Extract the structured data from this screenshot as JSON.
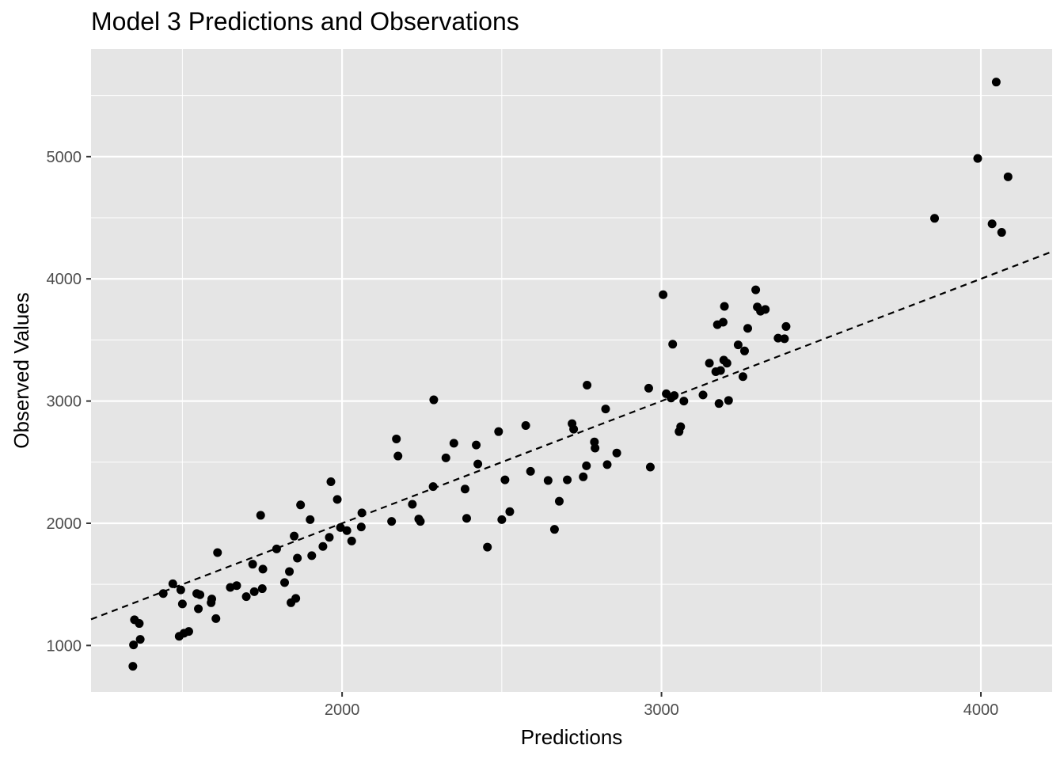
{
  "chart_data": {
    "type": "scatter",
    "title": "Model 3 Predictions and Observations",
    "xlabel": "Predictions",
    "ylabel": "Observed Values",
    "xlim": [
      1214,
      4223
    ],
    "ylim": [
      620,
      5880
    ],
    "x_ticks": [
      2000,
      3000,
      4000
    ],
    "y_ticks": [
      1000,
      2000,
      3000,
      4000,
      5000
    ],
    "grid": true,
    "legend": "none",
    "panel_background": "#e5e5e5",
    "grid_color": "#ffffff",
    "point_color": "#000000",
    "reference_line": {
      "style": "dashed",
      "slope": 1,
      "intercept": 0,
      "color": "#000000"
    },
    "points": [
      [
        1345,
        830
      ],
      [
        1347,
        1005
      ],
      [
        1350,
        1210
      ],
      [
        1365,
        1180
      ],
      [
        1368,
        1050
      ],
      [
        1440,
        1425
      ],
      [
        1470,
        1505
      ],
      [
        1490,
        1075
      ],
      [
        1495,
        1455
      ],
      [
        1500,
        1340
      ],
      [
        1505,
        1100
      ],
      [
        1520,
        1115
      ],
      [
        1545,
        1425
      ],
      [
        1550,
        1300
      ],
      [
        1555,
        1415
      ],
      [
        1590,
        1350
      ],
      [
        1592,
        1380
      ],
      [
        1605,
        1220
      ],
      [
        1610,
        1760
      ],
      [
        1650,
        1475
      ],
      [
        1670,
        1490
      ],
      [
        1700,
        1400
      ],
      [
        1720,
        1665
      ],
      [
        1725,
        1440
      ],
      [
        1745,
        2065
      ],
      [
        1750,
        1465
      ],
      [
        1752,
        1625
      ],
      [
        1795,
        1790
      ],
      [
        1820,
        1515
      ],
      [
        1835,
        1605
      ],
      [
        1840,
        1350
      ],
      [
        1850,
        1895
      ],
      [
        1855,
        1385
      ],
      [
        1860,
        1715
      ],
      [
        1870,
        2150
      ],
      [
        1900,
        2030
      ],
      [
        1905,
        1735
      ],
      [
        1940,
        1810
      ],
      [
        1960,
        1885
      ],
      [
        1965,
        2340
      ],
      [
        1985,
        2195
      ],
      [
        1995,
        1965
      ],
      [
        2015,
        1940
      ],
      [
        2030,
        1855
      ],
      [
        2060,
        1970
      ],
      [
        2062,
        2085
      ],
      [
        2155,
        2015
      ],
      [
        2170,
        2690
      ],
      [
        2175,
        2550
      ],
      [
        2220,
        2155
      ],
      [
        2240,
        2035
      ],
      [
        2245,
        2015
      ],
      [
        2285,
        2300
      ],
      [
        2287,
        3010
      ],
      [
        2325,
        2535
      ],
      [
        2350,
        2655
      ],
      [
        2385,
        2280
      ],
      [
        2390,
        2040
      ],
      [
        2420,
        2640
      ],
      [
        2425,
        2485
      ],
      [
        2455,
        1805
      ],
      [
        2490,
        2750
      ],
      [
        2500,
        2030
      ],
      [
        2510,
        2355
      ],
      [
        2525,
        2095
      ],
      [
        2575,
        2800
      ],
      [
        2590,
        2425
      ],
      [
        2645,
        2350
      ],
      [
        2665,
        1950
      ],
      [
        2680,
        2180
      ],
      [
        2705,
        2355
      ],
      [
        2720,
        2815
      ],
      [
        2725,
        2770
      ],
      [
        2755,
        2380
      ],
      [
        2765,
        2470
      ],
      [
        2767,
        3130
      ],
      [
        2790,
        2665
      ],
      [
        2792,
        2615
      ],
      [
        2825,
        2935
      ],
      [
        2830,
        2480
      ],
      [
        2860,
        2575
      ],
      [
        2960,
        3105
      ],
      [
        2965,
        2460
      ],
      [
        3005,
        3870
      ],
      [
        3015,
        3060
      ],
      [
        3030,
        3025
      ],
      [
        3035,
        3465
      ],
      [
        3040,
        3045
      ],
      [
        3055,
        2750
      ],
      [
        3060,
        2790
      ],
      [
        3070,
        3000
      ],
      [
        3130,
        3050
      ],
      [
        3150,
        3310
      ],
      [
        3170,
        3240
      ],
      [
        3175,
        3625
      ],
      [
        3180,
        2980
      ],
      [
        3185,
        3250
      ],
      [
        3193,
        3645
      ],
      [
        3197,
        3775
      ],
      [
        3195,
        3335
      ],
      [
        3205,
        3310
      ],
      [
        3210,
        3005
      ],
      [
        3240,
        3460
      ],
      [
        3255,
        3200
      ],
      [
        3260,
        3410
      ],
      [
        3270,
        3595
      ],
      [
        3295,
        3910
      ],
      [
        3300,
        3770
      ],
      [
        3310,
        3735
      ],
      [
        3325,
        3750
      ],
      [
        3365,
        3515
      ],
      [
        3385,
        3510
      ],
      [
        3390,
        3610
      ],
      [
        3855,
        4495
      ],
      [
        3990,
        4985
      ],
      [
        4035,
        4450
      ],
      [
        4048,
        5610
      ],
      [
        4065,
        4380
      ],
      [
        4085,
        4835
      ]
    ]
  }
}
